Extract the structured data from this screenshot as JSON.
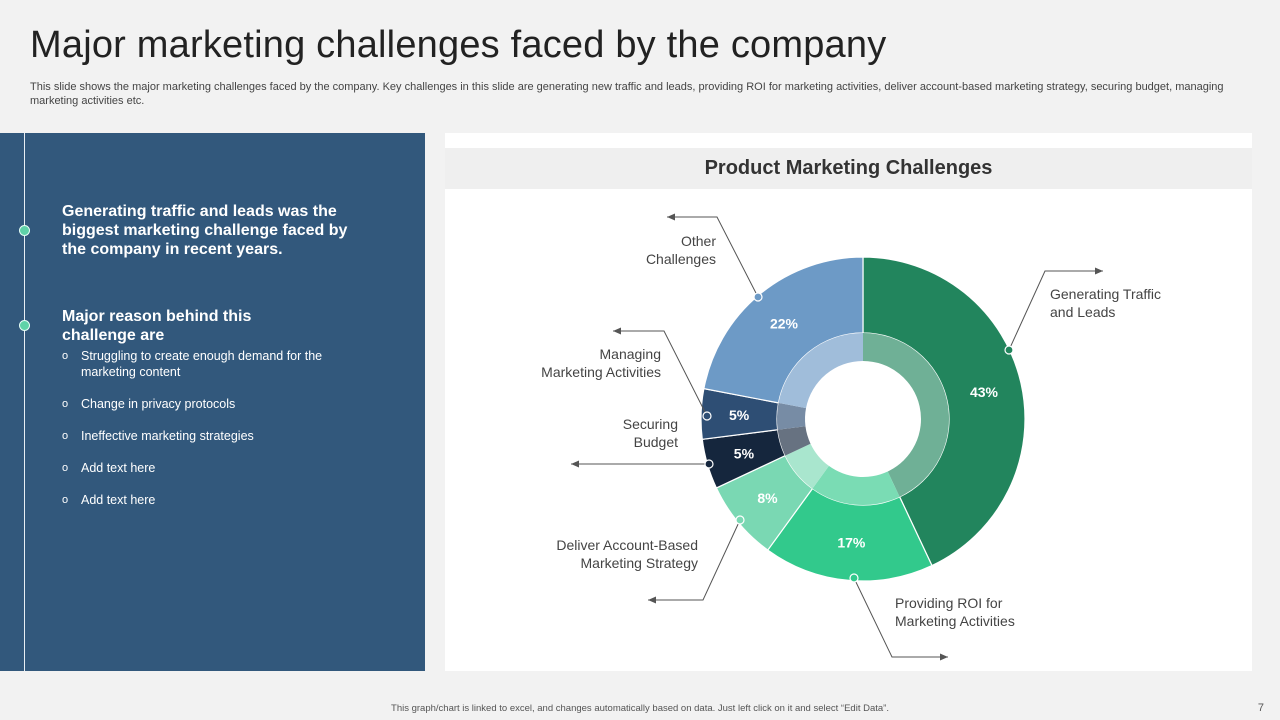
{
  "slide": {
    "title": "Major marketing challenges faced by the company",
    "subtitle": "This slide shows the major marketing challenges faced by the company. Key challenges in this slide are generating new traffic and leads, providing ROI for marketing activities, deliver account-based marketing strategy, securing budget, managing marketing activities etc.",
    "footer": "This graph/chart is linked to excel, and changes automatically based on data. Just left click on it and select “Edit Data”.",
    "page_number": "7"
  },
  "left_panel": {
    "heading1": "Generating traffic and leads was the biggest marketing challenge faced by the company in recent years.",
    "heading2": "Major reason behind this challenge are",
    "bullet_glyph": "o",
    "reasons": [
      "Struggling to create enough demand for the marketing content",
      "Change in privacy protocols",
      "Ineffective marketing strategies",
      "Add text here",
      "Add text here"
    ]
  },
  "chart_data": {
    "type": "pie",
    "variant": "donut",
    "title": "Product Marketing Challenges",
    "slices": [
      {
        "label": "Generating Traffic and Leads",
        "value": 43,
        "value_label": "43%",
        "color": "#22855d"
      },
      {
        "label": "Providing ROI for Marketing Activities",
        "value": 17,
        "value_label": "17%",
        "color": "#32c98c"
      },
      {
        "label": "Deliver Account-Based Marketing Strategy",
        "value": 8,
        "value_label": "8%",
        "color": "#7ad8b3"
      },
      {
        "label": "Securing Budget",
        "value": 5,
        "value_label": "5%",
        "color": "#15263d"
      },
      {
        "label": "Managing Marketing Activities",
        "value": 5,
        "value_label": "5%",
        "color": "#2e4e74"
      },
      {
        "label": "Other Challenges",
        "value": 22,
        "value_label": "22%",
        "color": "#6d9ac6"
      }
    ],
    "legend": "none"
  }
}
